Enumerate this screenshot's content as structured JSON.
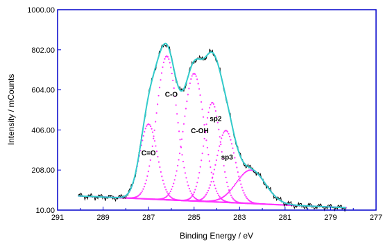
{
  "chart_data": {
    "type": "line",
    "title": "",
    "xlabel": "Binding Energy / eV",
    "ylabel": "Intensity / mCounts",
    "x_reversed": true,
    "xlim": [
      291,
      277
    ],
    "ylim": [
      10,
      1000
    ],
    "x_ticks": [
      291,
      289,
      287,
      285,
      283,
      281,
      279,
      277
    ],
    "x_tick_labels": [
      "291",
      "289",
      "287",
      "285",
      "283",
      "281",
      "279",
      "277"
    ],
    "y_ticks": [
      10,
      208,
      406,
      604,
      802,
      1000
    ],
    "y_tick_labels": [
      "10.00",
      "208.00",
      "406.00",
      "604.00",
      "802.00",
      "1000.00"
    ],
    "grid": false,
    "baseline": {
      "x_start": 290.1,
      "x_end": 278.3,
      "y_start": 80,
      "y_end": 22
    },
    "components": [
      {
        "label": "C=O",
        "center": 287.0,
        "height": 370,
        "fwhm": 0.9,
        "color": "#ff33ff"
      },
      {
        "label": "C-O",
        "center": 286.2,
        "height": 710,
        "fwhm": 1.05,
        "color": "#ff33ff"
      },
      {
        "label": "C-OH",
        "center": 285.0,
        "height": 630,
        "fwhm": 1.05,
        "color": "#ff33ff"
      },
      {
        "label": "sp2",
        "center": 284.2,
        "height": 490,
        "fwhm": 0.85,
        "color": "#ff33ff"
      },
      {
        "label": "sp3",
        "center": 283.6,
        "height": 355,
        "fwhm": 0.95,
        "color": "#ff33ff"
      },
      {
        "label": "",
        "center": 282.5,
        "height": 165,
        "fwhm": 1.5,
        "color": "#ff33ff"
      }
    ],
    "annotations": [
      {
        "text": "C=O",
        "x": 287.0,
        "y": 280
      },
      {
        "text": "C-O",
        "x": 286.0,
        "y": 570
      },
      {
        "text": "C-OH",
        "x": 284.75,
        "y": 390
      },
      {
        "text": "sp2",
        "x": 284.05,
        "y": 450
      },
      {
        "text": "sp3",
        "x": 283.55,
        "y": 260
      }
    ],
    "series": [
      {
        "role": "measured",
        "color": "#000000"
      },
      {
        "role": "envelope-fit",
        "color": "#33cccc"
      }
    ],
    "colors": {
      "axis": "#0000cc",
      "components": "#ff33ff",
      "fit": "#33cccc",
      "measured": "#000000"
    }
  }
}
